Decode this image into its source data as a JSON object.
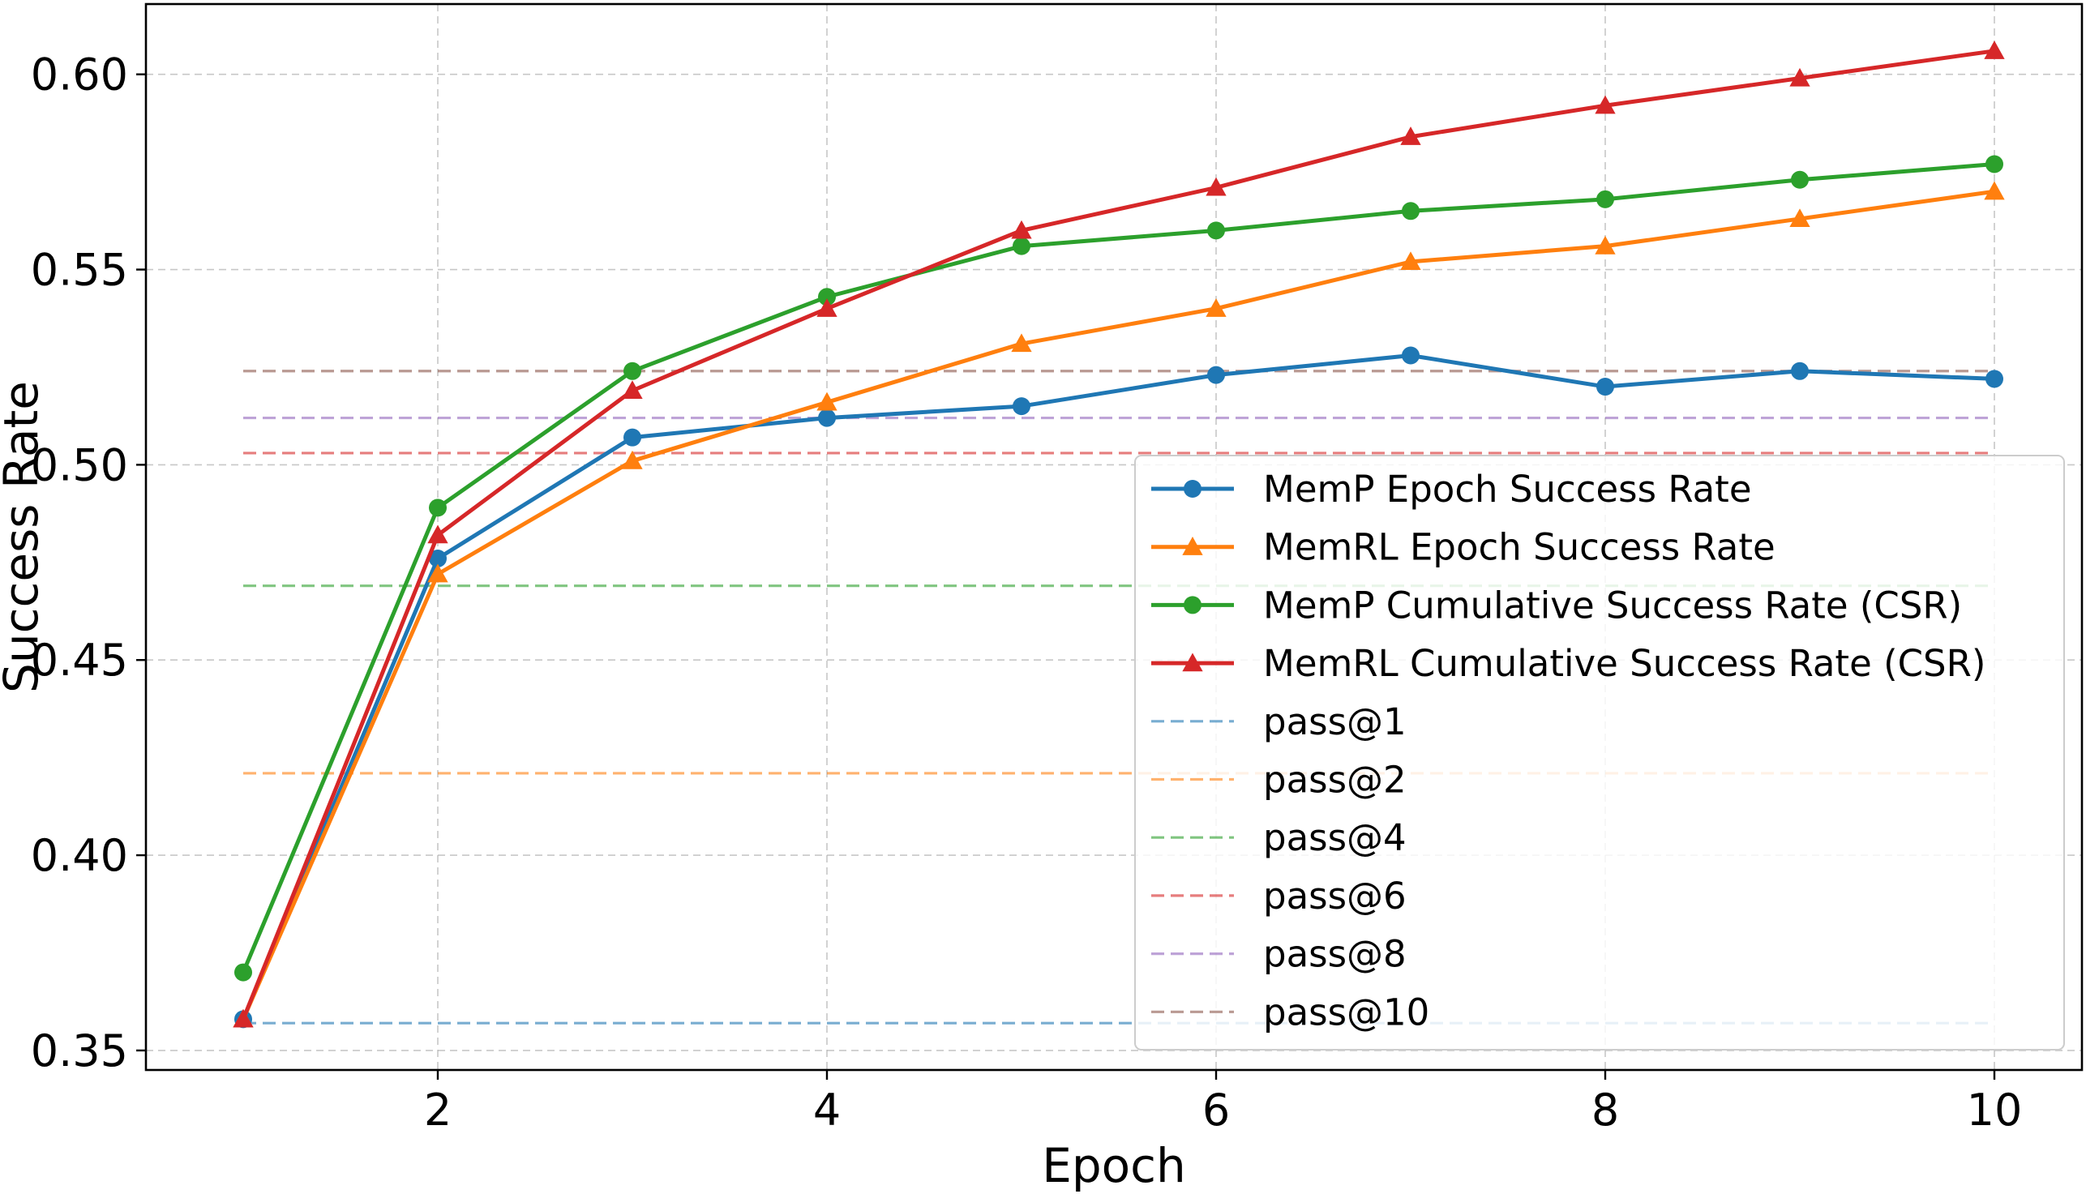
{
  "chart_data": {
    "type": "line",
    "title": "",
    "xlabel": "Epoch",
    "ylabel": "Success Rate",
    "xlim": [
      0.5,
      10.45
    ],
    "ylim": [
      0.345,
      0.618
    ],
    "xticks": [
      2,
      4,
      6,
      8,
      10
    ],
    "yticks": [
      0.35,
      0.4,
      0.45,
      0.5,
      0.55,
      0.6
    ],
    "ytick_labels": [
      "0.35",
      "0.40",
      "0.45",
      "0.50",
      "0.55",
      "0.60"
    ],
    "grid": true,
    "legend_position": "center-right",
    "x": [
      1,
      2,
      3,
      4,
      5,
      6,
      7,
      8,
      9,
      10
    ],
    "series": [
      {
        "name": "MemP Epoch Success Rate",
        "color": "#1f77b4",
        "marker": "circle",
        "values": [
          0.358,
          0.476,
          0.507,
          0.512,
          0.515,
          0.523,
          0.528,
          0.52,
          0.524,
          0.522
        ]
      },
      {
        "name": "MemRL Epoch Success Rate",
        "color": "#ff7f0e",
        "marker": "triangle",
        "values": [
          0.358,
          0.472,
          0.501,
          0.516,
          0.531,
          0.54,
          0.552,
          0.556,
          0.563,
          0.57
        ]
      },
      {
        "name": "MemP Cumulative Success Rate (CSR)",
        "color": "#2ca02c",
        "marker": "circle",
        "values": [
          0.37,
          0.489,
          0.524,
          0.543,
          0.556,
          0.56,
          0.565,
          0.568,
          0.573,
          0.577
        ]
      },
      {
        "name": "MemRL Cumulative Success Rate (CSR)",
        "color": "#d62728",
        "marker": "triangle",
        "values": [
          0.358,
          0.482,
          0.519,
          0.54,
          0.56,
          0.571,
          0.584,
          0.592,
          0.599,
          0.606
        ]
      }
    ],
    "reference_lines": [
      {
        "name": "pass@1",
        "color": "#1f77b4",
        "value": 0.357
      },
      {
        "name": "pass@2",
        "color": "#ff7f0e",
        "value": 0.421
      },
      {
        "name": "pass@4",
        "color": "#2ca02c",
        "value": 0.469
      },
      {
        "name": "pass@6",
        "color": "#d62728",
        "value": 0.503
      },
      {
        "name": "pass@8",
        "color": "#9467bd",
        "value": 0.512
      },
      {
        "name": "pass@10",
        "color": "#8c564b",
        "value": 0.524
      }
    ]
  }
}
